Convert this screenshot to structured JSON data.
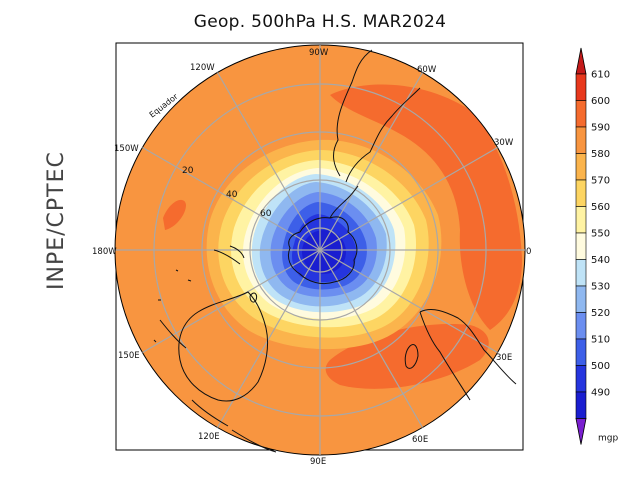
{
  "title": "Geop. 500hPa H.S. MAR2024",
  "side_label": "INPE/CPTEC",
  "meridian_labels": {
    "90W": "90W",
    "60W": "60W",
    "30W": "30W",
    "0": "0",
    "30E": "30E",
    "60E": "60E",
    "90E": "90E",
    "120E": "120E",
    "150E": "150E",
    "180W": "180W",
    "150W": "150W",
    "120W": "120W"
  },
  "latitude_labels": [
    "20",
    "40",
    "60"
  ],
  "equator_label": "Equador",
  "colorbar": {
    "unit": "mgp",
    "levels": [
      "610",
      "600",
      "590",
      "580",
      "570",
      "560",
      "550",
      "540",
      "530",
      "520",
      "510",
      "500",
      "490"
    ],
    "colors": [
      "#c41a1a",
      "#e8381d",
      "#f56b2e",
      "#f89540",
      "#fbb44c",
      "#fdd562",
      "#fff3a3",
      "#fffbdf",
      "#bfe3f7",
      "#8fb8f0",
      "#6b8ef0",
      "#3d5fe8",
      "#2535de",
      "#1a1ed0",
      "#7a1fd0"
    ]
  }
}
